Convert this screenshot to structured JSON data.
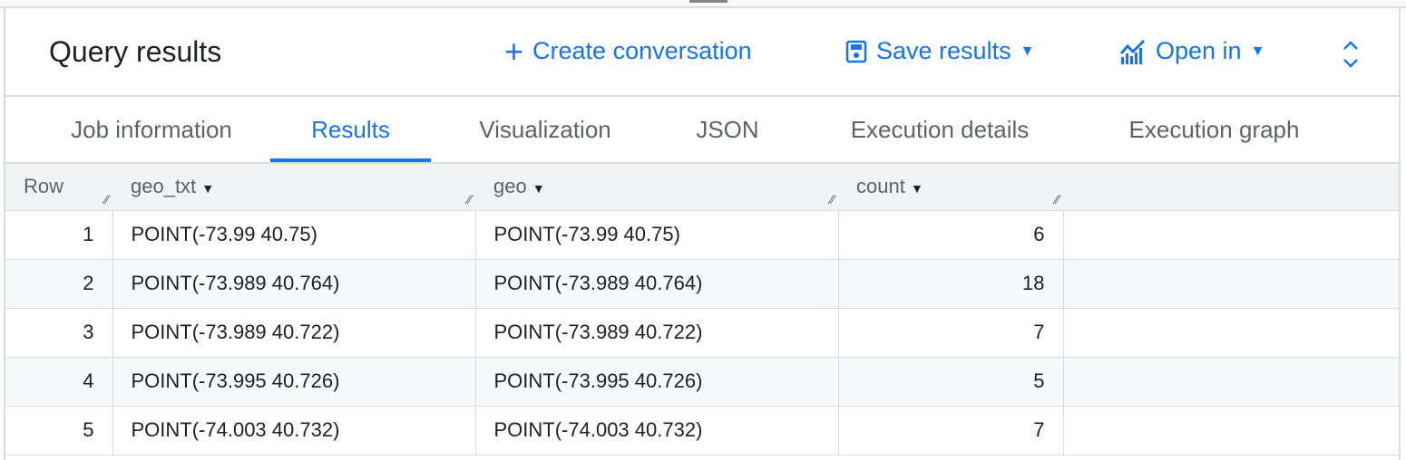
{
  "header": {
    "title": "Query results",
    "create_conversation": "Create conversation",
    "save_results": "Save results",
    "open_in": "Open in"
  },
  "tabs": [
    {
      "label": "Job information"
    },
    {
      "label": "Results",
      "active": true
    },
    {
      "label": "Visualization"
    },
    {
      "label": "JSON"
    },
    {
      "label": "Execution details"
    },
    {
      "label": "Execution graph"
    }
  ],
  "table": {
    "columns": [
      "Row",
      "geo_txt",
      "geo",
      "count"
    ],
    "rows": [
      [
        "1",
        "POINT(-73.99 40.75)",
        "POINT(-73.99 40.75)",
        "6"
      ],
      [
        "2",
        "POINT(-73.989 40.764)",
        "POINT(-73.989 40.764)",
        "18"
      ],
      [
        "3",
        "POINT(-73.989 40.722)",
        "POINT(-73.989 40.722)",
        "7"
      ],
      [
        "4",
        "POINT(-73.995 40.726)",
        "POINT(-73.995 40.726)",
        "5"
      ],
      [
        "5",
        "POINT(-74.003 40.732)",
        "POINT(-74.003 40.732)",
        "7"
      ]
    ]
  },
  "colors": {
    "accent": "#1a73e8"
  }
}
